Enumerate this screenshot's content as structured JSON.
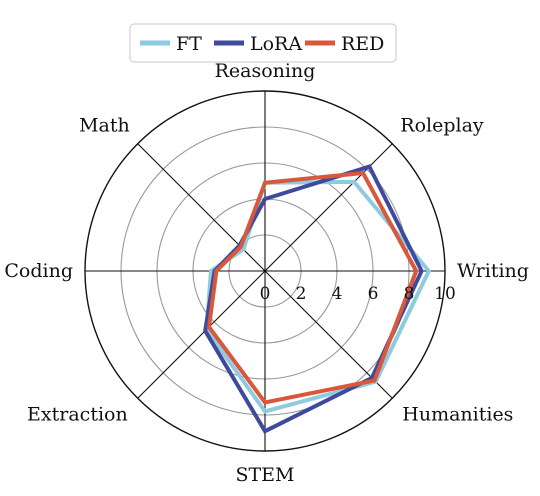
{
  "chart_data": {
    "type": "radar",
    "axes": [
      "Reasoning",
      "Roleplay",
      "Writing",
      "Humanities",
      "STEM",
      "Extraction",
      "Coding",
      "Math"
    ],
    "r_ticks": [
      "0",
      "2",
      "4",
      "6",
      "8",
      "10"
    ],
    "r_max": 10,
    "grid": true,
    "legend_position": "top-center",
    "series": [
      {
        "name": "FT",
        "color": "#8ecae0",
        "values": [
          4.9,
          7.0,
          9.1,
          8.7,
          7.8,
          4.6,
          3.0,
          1.7
        ]
      },
      {
        "name": "LoRA",
        "color": "#3f4a9c",
        "values": [
          4.0,
          8.2,
          8.7,
          8.4,
          8.9,
          4.7,
          2.8,
          2.0
        ]
      },
      {
        "name": "RED",
        "color": "#d9573b",
        "values": [
          4.9,
          7.7,
          8.4,
          8.6,
          7.3,
          4.4,
          2.7,
          1.9
        ]
      }
    ]
  }
}
